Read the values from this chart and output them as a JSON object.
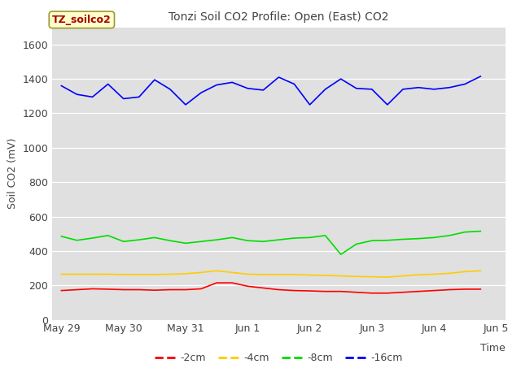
{
  "title": "Tonzi Soil CO2 Profile: Open (East) CO2",
  "xlabel": "Time",
  "ylabel": "Soil CO2 (mV)",
  "annotation_text": "TZ_soilco2",
  "ylim": [
    0,
    1700
  ],
  "yticks": [
    0,
    200,
    400,
    600,
    800,
    1000,
    1200,
    1400,
    1600
  ],
  "plot_bg_color": "#e0e0e0",
  "fig_bg_color": "#ffffff",
  "series": {
    "-2cm": {
      "color": "#ff0000",
      "x": [
        0,
        0.25,
        0.5,
        0.75,
        1.0,
        1.25,
        1.5,
        1.75,
        2.0,
        2.25,
        2.5,
        2.75,
        3.0,
        3.25,
        3.5,
        3.75,
        4.0,
        4.25,
        4.5,
        4.75,
        5.0,
        5.25,
        5.5,
        5.75,
        6.0,
        6.25,
        6.5,
        6.75
      ],
      "y": [
        170,
        175,
        180,
        178,
        175,
        175,
        172,
        175,
        175,
        180,
        215,
        215,
        195,
        185,
        175,
        170,
        168,
        165,
        165,
        160,
        155,
        155,
        160,
        165,
        170,
        175,
        178,
        178
      ]
    },
    "-4cm": {
      "color": "#ffcc00",
      "x": [
        0,
        0.25,
        0.5,
        0.75,
        1.0,
        1.25,
        1.5,
        1.75,
        2.0,
        2.25,
        2.5,
        2.75,
        3.0,
        3.25,
        3.5,
        3.75,
        4.0,
        4.25,
        4.5,
        4.75,
        5.0,
        5.25,
        5.5,
        5.75,
        6.0,
        6.25,
        6.5,
        6.75
      ],
      "y": [
        265,
        265,
        265,
        265,
        263,
        263,
        263,
        265,
        268,
        275,
        285,
        275,
        265,
        263,
        263,
        263,
        260,
        258,
        255,
        252,
        250,
        248,
        255,
        262,
        265,
        270,
        280,
        285
      ]
    },
    "-8cm": {
      "color": "#00dd00",
      "x": [
        0,
        0.25,
        0.5,
        0.75,
        1.0,
        1.25,
        1.5,
        1.75,
        2.0,
        2.25,
        2.5,
        2.75,
        3.0,
        3.25,
        3.5,
        3.75,
        4.0,
        4.25,
        4.5,
        4.75,
        5.0,
        5.25,
        5.5,
        5.75,
        6.0,
        6.25,
        6.5,
        6.75
      ],
      "y": [
        485,
        462,
        475,
        490,
        455,
        465,
        478,
        460,
        445,
        455,
        465,
        478,
        460,
        455,
        465,
        475,
        478,
        490,
        380,
        440,
        460,
        462,
        468,
        472,
        478,
        490,
        510,
        515
      ]
    },
    "-16cm": {
      "color": "#0000ff",
      "x": [
        0,
        0.25,
        0.5,
        0.75,
        1.0,
        1.25,
        1.5,
        1.75,
        2.0,
        2.25,
        2.5,
        2.75,
        3.0,
        3.25,
        3.5,
        3.75,
        4.0,
        4.25,
        4.5,
        4.75,
        5.0,
        5.25,
        5.5,
        5.75,
        6.0,
        6.25,
        6.5,
        6.75
      ],
      "y": [
        1360,
        1310,
        1295,
        1370,
        1285,
        1295,
        1395,
        1340,
        1250,
        1320,
        1365,
        1380,
        1345,
        1335,
        1410,
        1370,
        1250,
        1340,
        1400,
        1345,
        1340,
        1250,
        1340,
        1350,
        1340,
        1350,
        1370,
        1415
      ]
    }
  },
  "xtick_positions": [
    0,
    1,
    2,
    3,
    4,
    5,
    6,
    7
  ],
  "xtick_labels": [
    "May 29",
    "May 30",
    "May 31",
    "Jun 1",
    "Jun 2",
    "Jun 3",
    "Jun 4",
    "Jun 5"
  ],
  "xlim": [
    -0.15,
    7.15
  ],
  "legend_order": [
    "-2cm",
    "-4cm",
    "-8cm",
    "-16cm"
  ],
  "title_fontsize": 10,
  "label_fontsize": 9,
  "tick_fontsize": 9,
  "annotation_fontsize": 9,
  "legend_fontsize": 9
}
